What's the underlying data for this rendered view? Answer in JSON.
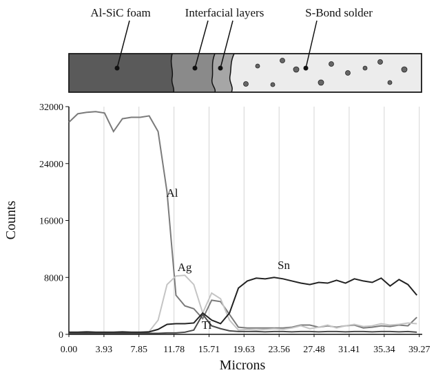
{
  "diagram": {
    "labels": [
      "Al-SiC foam",
      "Interfacial layers",
      "S-Bond solder"
    ]
  },
  "chart_data": {
    "type": "line",
    "x_label": "Microns",
    "y_label": "Counts",
    "x": [
      0,
      1,
      2,
      3,
      4,
      5,
      6,
      7,
      8,
      9,
      10,
      11,
      12,
      13,
      14,
      15,
      16,
      17,
      18,
      19,
      20,
      21,
      22,
      23,
      24,
      25,
      26,
      27,
      28,
      29,
      30,
      31,
      32,
      33,
      34,
      35,
      36,
      37,
      38,
      39
    ],
    "series": [
      {
        "name": "Al",
        "color": "#7a7a7a",
        "values": [
          29800,
          31000,
          31200,
          31300,
          31100,
          28500,
          30300,
          30500,
          30500,
          30700,
          28500,
          20000,
          5500,
          4000,
          3600,
          2200,
          4800,
          4600,
          2800,
          1000,
          900,
          900,
          900,
          900,
          900,
          1000,
          1300,
          1300,
          1000,
          1200,
          1000,
          1200,
          1300,
          900,
          1000,
          1200,
          1100,
          1300,
          1200,
          2400
        ]
      },
      {
        "name": "Ag",
        "color": "#c4c4c4",
        "values": [
          200,
          200,
          200,
          200,
          200,
          200,
          200,
          200,
          200,
          400,
          2000,
          7000,
          8200,
          8300,
          7000,
          3000,
          5800,
          5000,
          2000,
          600,
          700,
          600,
          700,
          800,
          700,
          900,
          1200,
          800,
          1000,
          1300,
          900,
          1200,
          1400,
          1100,
          1200,
          1500,
          1300,
          1400,
          1600,
          1500
        ]
      },
      {
        "name": "Sn",
        "color": "#222222",
        "values": [
          300,
          300,
          350,
          300,
          300,
          300,
          350,
          300,
          300,
          350,
          700,
          1400,
          1500,
          1500,
          1600,
          3000,
          2000,
          1500,
          3000,
          6500,
          7500,
          7900,
          7800,
          8000,
          7800,
          7500,
          7200,
          7000,
          7300,
          7200,
          7600,
          7200,
          7800,
          7500,
          7300,
          7900,
          6800,
          7700,
          7000,
          5500
        ]
      },
      {
        "name": "Ti",
        "color": "#4a4a4a",
        "values": [
          150,
          150,
          150,
          150,
          150,
          150,
          150,
          150,
          150,
          150,
          150,
          200,
          200,
          300,
          600,
          2800,
          1200,
          800,
          500,
          400,
          400,
          400,
          350,
          400,
          400,
          350,
          400,
          400,
          350,
          400,
          400,
          350,
          400,
          400,
          350,
          400,
          400,
          350,
          400,
          300
        ]
      }
    ],
    "xlim": [
      0,
      39.6
    ],
    "ylim": [
      0,
      32000
    ],
    "xticks": [
      {
        "value": 0,
        "label": "0.00"
      },
      {
        "value": 3.93,
        "label": "3.93"
      },
      {
        "value": 7.85,
        "label": "7.85"
      },
      {
        "value": 11.78,
        "label": "11.78"
      },
      {
        "value": 15.71,
        "label": "15.71"
      },
      {
        "value": 19.63,
        "label": "19.63"
      },
      {
        "value": 23.56,
        "label": "23.56"
      },
      {
        "value": 27.48,
        "label": "27.48"
      },
      {
        "value": 31.41,
        "label": "31.41"
      },
      {
        "value": 35.34,
        "label": "35.34"
      },
      {
        "value": 39.27,
        "label": "39.27"
      }
    ],
    "yticks": [
      0,
      8000,
      16000,
      24000,
      32000
    ],
    "grid": "x"
  }
}
